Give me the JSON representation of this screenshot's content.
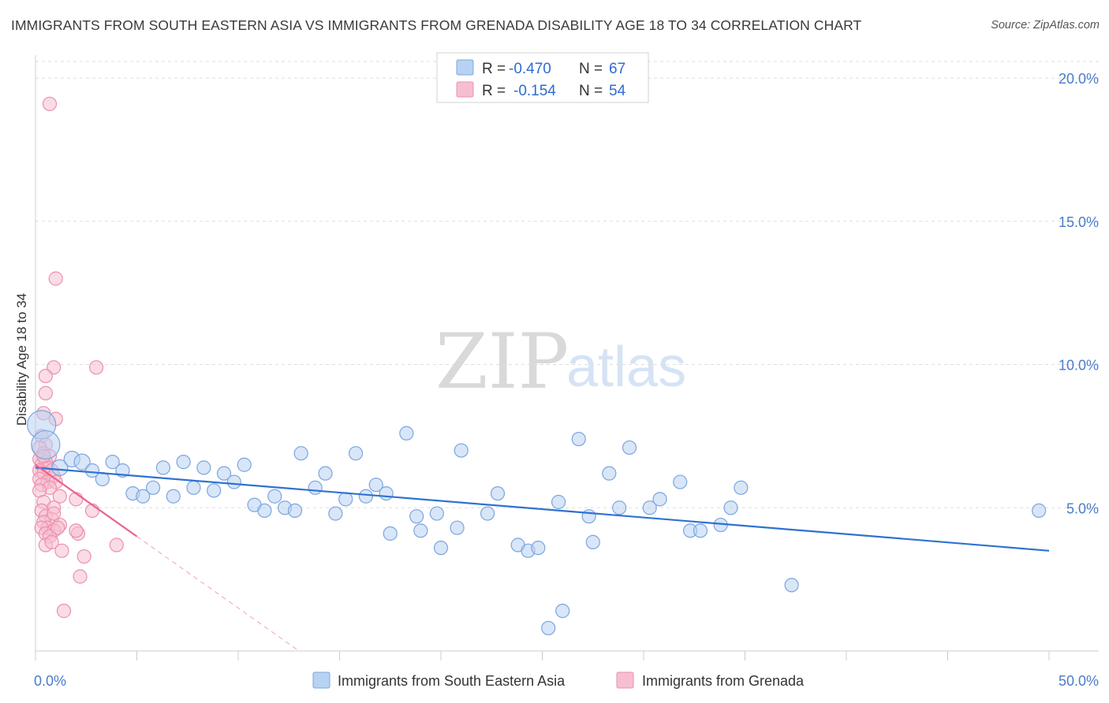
{
  "title": "IMMIGRANTS FROM SOUTH EASTERN ASIA VS IMMIGRANTS FROM GRENADA DISABILITY AGE 18 TO 34 CORRELATION CHART",
  "source": "Source: ZipAtlas.com",
  "watermark": {
    "zip": "ZIP",
    "atlas": "atlas"
  },
  "colors": {
    "blue_fill": "#b8d2f3",
    "blue_stroke": "#7ba5e0",
    "blue_line": "#2f72d0",
    "pink_fill": "#f6bfd0",
    "pink_stroke": "#ec8fae",
    "pink_line": "#e8638f",
    "grid": "#dddddd",
    "tick_text": "#4a7cc9"
  },
  "legend": {
    "r_label": "R =",
    "n_label": "N =",
    "series": [
      {
        "r": "-0.470",
        "n": "67"
      },
      {
        "r": "-0.154",
        "n": "54"
      }
    ]
  },
  "chart_data": {
    "type": "scatter",
    "xlabel": "",
    "ylabel": "Disability Age 18 to 34",
    "xlim": [
      0,
      50
    ],
    "ylim": [
      0,
      20.8
    ],
    "x_tick_labels": [
      "0.0%",
      "50.0%"
    ],
    "y_ticks": [
      5,
      10,
      15,
      20
    ],
    "y_tick_labels": [
      "5.0%",
      "10.0%",
      "15.0%",
      "20.0%"
    ],
    "grid": "horizontal dashed",
    "legend_position": "top-center",
    "series": [
      {
        "name": "Immigrants from South Eastern Asia",
        "trend": {
          "x": [
            0,
            50
          ],
          "y": [
            6.4,
            3.5
          ]
        },
        "points": [
          {
            "x": 0.3,
            "y": 7.9,
            "s": 3
          },
          {
            "x": 0.5,
            "y": 7.2,
            "s": 3
          },
          {
            "x": 1.2,
            "y": 6.4,
            "s": 2
          },
          {
            "x": 1.8,
            "y": 6.7,
            "s": 2
          },
          {
            "x": 2.3,
            "y": 6.6,
            "s": 2
          },
          {
            "x": 2.8,
            "y": 6.3,
            "s": 1
          },
          {
            "x": 3.3,
            "y": 6.0,
            "s": 1
          },
          {
            "x": 3.8,
            "y": 6.6,
            "s": 1
          },
          {
            "x": 4.3,
            "y": 6.3,
            "s": 1
          },
          {
            "x": 4.8,
            "y": 5.5,
            "s": 1
          },
          {
            "x": 5.3,
            "y": 5.4,
            "s": 1
          },
          {
            "x": 5.8,
            "y": 5.7,
            "s": 1
          },
          {
            "x": 6.3,
            "y": 6.4,
            "s": 1
          },
          {
            "x": 6.8,
            "y": 5.4,
            "s": 1
          },
          {
            "x": 7.3,
            "y": 6.6,
            "s": 1
          },
          {
            "x": 7.8,
            "y": 5.7,
            "s": 1
          },
          {
            "x": 8.3,
            "y": 6.4,
            "s": 1
          },
          {
            "x": 8.8,
            "y": 5.6,
            "s": 1
          },
          {
            "x": 9.3,
            "y": 6.2,
            "s": 1
          },
          {
            "x": 9.8,
            "y": 5.9,
            "s": 1
          },
          {
            "x": 10.3,
            "y": 6.5,
            "s": 1
          },
          {
            "x": 10.8,
            "y": 5.1,
            "s": 1
          },
          {
            "x": 11.3,
            "y": 4.9,
            "s": 1
          },
          {
            "x": 11.8,
            "y": 5.4,
            "s": 1
          },
          {
            "x": 12.3,
            "y": 5.0,
            "s": 1
          },
          {
            "x": 12.8,
            "y": 4.9,
            "s": 1
          },
          {
            "x": 13.1,
            "y": 6.9,
            "s": 1
          },
          {
            "x": 13.8,
            "y": 5.7,
            "s": 1
          },
          {
            "x": 14.3,
            "y": 6.2,
            "s": 1
          },
          {
            "x": 14.8,
            "y": 4.8,
            "s": 1
          },
          {
            "x": 15.3,
            "y": 5.3,
            "s": 1
          },
          {
            "x": 15.8,
            "y": 6.9,
            "s": 1
          },
          {
            "x": 16.3,
            "y": 5.4,
            "s": 1
          },
          {
            "x": 16.8,
            "y": 5.8,
            "s": 1
          },
          {
            "x": 17.3,
            "y": 5.5,
            "s": 1
          },
          {
            "x": 17.5,
            "y": 4.1,
            "s": 1
          },
          {
            "x": 18.3,
            "y": 7.6,
            "s": 1
          },
          {
            "x": 18.8,
            "y": 4.7,
            "s": 1
          },
          {
            "x": 19.0,
            "y": 4.2,
            "s": 1
          },
          {
            "x": 19.8,
            "y": 4.8,
            "s": 1
          },
          {
            "x": 20.0,
            "y": 3.6,
            "s": 1
          },
          {
            "x": 20.8,
            "y": 4.3,
            "s": 1
          },
          {
            "x": 21.0,
            "y": 7.0,
            "s": 1
          },
          {
            "x": 22.3,
            "y": 4.8,
            "s": 1
          },
          {
            "x": 22.8,
            "y": 5.5,
            "s": 1
          },
          {
            "x": 23.8,
            "y": 3.7,
            "s": 1
          },
          {
            "x": 24.3,
            "y": 3.5,
            "s": 1
          },
          {
            "x": 24.8,
            "y": 3.6,
            "s": 1
          },
          {
            "x": 25.3,
            "y": 0.8,
            "s": 1
          },
          {
            "x": 25.8,
            "y": 5.2,
            "s": 1
          },
          {
            "x": 26.0,
            "y": 1.4,
            "s": 1
          },
          {
            "x": 26.8,
            "y": 7.4,
            "s": 1
          },
          {
            "x": 27.3,
            "y": 4.7,
            "s": 1
          },
          {
            "x": 27.5,
            "y": 3.8,
            "s": 1
          },
          {
            "x": 28.3,
            "y": 6.2,
            "s": 1
          },
          {
            "x": 28.8,
            "y": 5.0,
            "s": 1
          },
          {
            "x": 29.3,
            "y": 7.1,
            "s": 1
          },
          {
            "x": 30.3,
            "y": 5.0,
            "s": 1
          },
          {
            "x": 30.8,
            "y": 5.3,
            "s": 1
          },
          {
            "x": 31.8,
            "y": 5.9,
            "s": 1
          },
          {
            "x": 32.3,
            "y": 4.2,
            "s": 1
          },
          {
            "x": 32.8,
            "y": 4.2,
            "s": 1
          },
          {
            "x": 33.8,
            "y": 4.4,
            "s": 1
          },
          {
            "x": 34.3,
            "y": 5.0,
            "s": 1
          },
          {
            "x": 34.8,
            "y": 5.7,
            "s": 1
          },
          {
            "x": 37.3,
            "y": 2.3,
            "s": 1
          },
          {
            "x": 49.5,
            "y": 4.9,
            "s": 1
          }
        ]
      },
      {
        "name": "Immigrants from Grenada",
        "trend": {
          "x": [
            0,
            5
          ],
          "y": [
            6.5,
            4.0
          ]
        },
        "trend_extension": {
          "x": [
            5,
            13
          ],
          "y": [
            4.0,
            0.0
          ]
        },
        "points": [
          {
            "x": 0.7,
            "y": 19.1
          },
          {
            "x": 1.0,
            "y": 13.0
          },
          {
            "x": 0.9,
            "y": 9.9
          },
          {
            "x": 3.0,
            "y": 9.9
          },
          {
            "x": 0.5,
            "y": 9.6
          },
          {
            "x": 0.5,
            "y": 9.0
          },
          {
            "x": 0.4,
            "y": 8.3
          },
          {
            "x": 1.0,
            "y": 8.1
          },
          {
            "x": 0.3,
            "y": 7.5
          },
          {
            "x": 0.5,
            "y": 7.2
          },
          {
            "x": 0.2,
            "y": 7.1
          },
          {
            "x": 0.4,
            "y": 6.9
          },
          {
            "x": 0.7,
            "y": 6.8
          },
          {
            "x": 0.2,
            "y": 6.7
          },
          {
            "x": 0.5,
            "y": 6.6
          },
          {
            "x": 0.3,
            "y": 6.5
          },
          {
            "x": 0.6,
            "y": 6.4
          },
          {
            "x": 0.2,
            "y": 6.3
          },
          {
            "x": 0.8,
            "y": 6.3
          },
          {
            "x": 0.4,
            "y": 6.2
          },
          {
            "x": 0.9,
            "y": 6.1
          },
          {
            "x": 0.2,
            "y": 6.0
          },
          {
            "x": 0.6,
            "y": 5.9
          },
          {
            "x": 1.0,
            "y": 5.9
          },
          {
            "x": 0.3,
            "y": 5.8
          },
          {
            "x": 0.7,
            "y": 5.7
          },
          {
            "x": 0.2,
            "y": 5.6
          },
          {
            "x": 1.2,
            "y": 5.4
          },
          {
            "x": 2.0,
            "y": 5.3
          },
          {
            "x": 0.4,
            "y": 5.2
          },
          {
            "x": 0.9,
            "y": 5.0
          },
          {
            "x": 2.8,
            "y": 4.9
          },
          {
            "x": 0.3,
            "y": 4.9
          },
          {
            "x": 0.5,
            "y": 4.7
          },
          {
            "x": 0.8,
            "y": 4.6
          },
          {
            "x": 0.4,
            "y": 4.5
          },
          {
            "x": 1.2,
            "y": 4.4
          },
          {
            "x": 0.6,
            "y": 4.3
          },
          {
            "x": 0.3,
            "y": 4.3
          },
          {
            "x": 0.9,
            "y": 4.2
          },
          {
            "x": 2.1,
            "y": 4.1
          },
          {
            "x": 0.5,
            "y": 4.1
          },
          {
            "x": 0.7,
            "y": 4.0
          },
          {
            "x": 1.1,
            "y": 4.3
          },
          {
            "x": 2.0,
            "y": 4.2
          },
          {
            "x": 4.0,
            "y": 3.7
          },
          {
            "x": 0.5,
            "y": 3.7
          },
          {
            "x": 1.3,
            "y": 3.5
          },
          {
            "x": 2.4,
            "y": 3.3
          },
          {
            "x": 0.8,
            "y": 3.8
          },
          {
            "x": 2.2,
            "y": 2.6
          },
          {
            "x": 1.4,
            "y": 1.4
          },
          {
            "x": 0.9,
            "y": 4.8
          },
          {
            "x": 0.4,
            "y": 6.8
          }
        ]
      }
    ]
  }
}
